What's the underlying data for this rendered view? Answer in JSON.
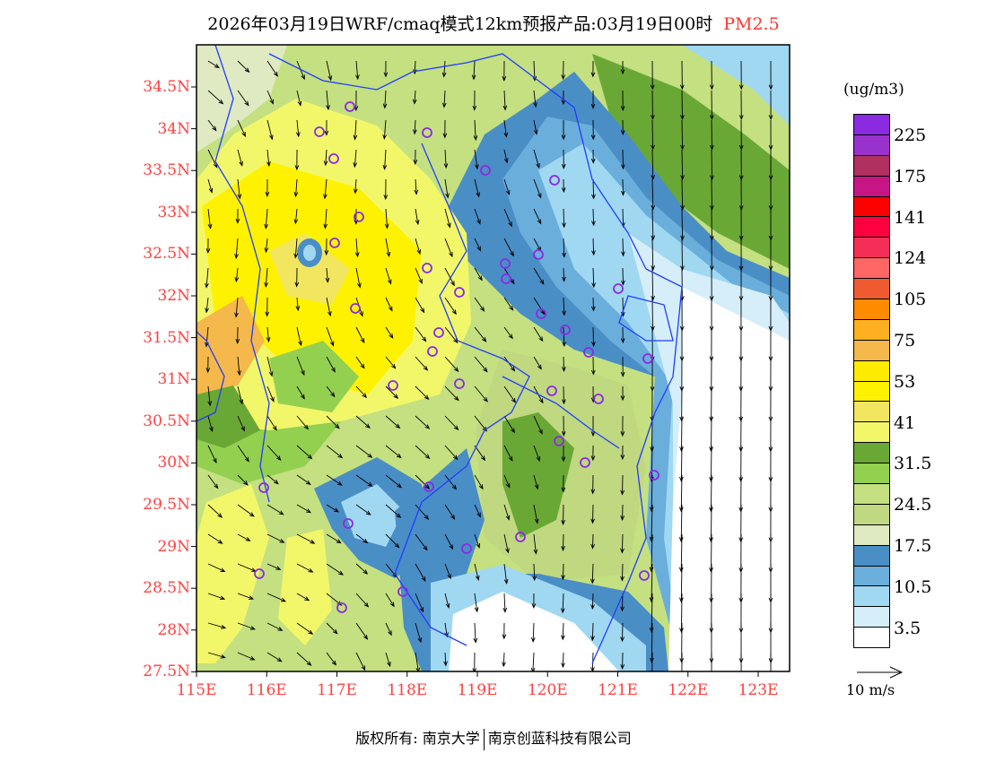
{
  "title": {
    "main": "2026年03月19日WRF/cmaq模式12km预报产品:03月19日00时",
    "variable": "PM2.5"
  },
  "lat_labels": [
    "34.5N",
    "34N",
    "33.5N",
    "33N",
    "32.5N",
    "32N",
    "31.5N",
    "31N",
    "30.5N",
    "30N",
    "29.5N",
    "29N",
    "28.5N",
    "28N",
    "27.5N"
  ],
  "lon_labels": [
    "115E",
    "116E",
    "117E",
    "118E",
    "119E",
    "120E",
    "121E",
    "122E",
    "123E"
  ],
  "legend": {
    "unit": "(ug/m3)",
    "colors": [
      "#8a2be2",
      "#9932cc",
      "#b03060",
      "#c71585",
      "#ff0000",
      "#ff0040",
      "#f52e58",
      "#ff6666",
      "#f05a30",
      "#ff8c00",
      "#ffb020",
      "#f5b84a",
      "#ffeb00",
      "#fff200",
      "#f2e660",
      "#f2f76a",
      "#6aa836",
      "#94d050",
      "#c4e080",
      "#c0d880",
      "#dfe9c2",
      "#4a8ec6",
      "#6aaedc",
      "#a0d8f2",
      "#d6eef9",
      "#ffffff"
    ],
    "labels": [
      "225",
      "175",
      "141",
      "124",
      "105",
      "75",
      "53",
      "41",
      "31.5",
      "24.5",
      "17.5",
      "10.5",
      "3.5"
    ]
  },
  "wind_scale": "10 m/s",
  "footer": {
    "left": "版权所有: 南京大学",
    "right": "南京创蓝科技有限公司"
  }
}
